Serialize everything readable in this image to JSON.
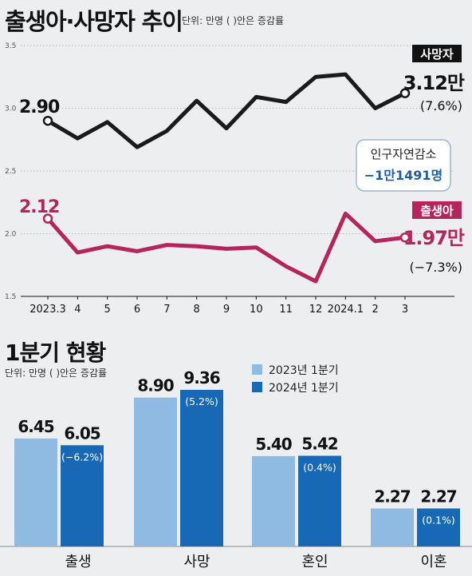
{
  "header": {
    "title": "출생아·사망자 추이",
    "unit": "단위: 만명 ( )안은 증감률"
  },
  "line_chart": {
    "deaths_tag": "사망자",
    "births_tag": "출생아",
    "deaths_start": "2.90",
    "births_start": "2.12",
    "deaths_end": "3.12만",
    "deaths_change": "(7.6%)",
    "births_end": "1.97만",
    "births_change": "(−7.3%)",
    "callout_line1": "인구자연감소",
    "callout_line2": "−1만1491명"
  },
  "section2": {
    "title": "1분기 현황",
    "unit": "단위: 만명 ( )안은  증감률"
  },
  "legend": {
    "y2023": "2023년 1분기",
    "y2024": "2024년 1분기"
  },
  "colors": {
    "deaths": "#1a1a1a",
    "births": "#b5245a",
    "bar2023": "#8fbbe3",
    "bar2024": "#1769b6",
    "callout_text": "#1f5fa8"
  },
  "chart_data": [
    {
      "type": "line",
      "title": "출생아·사망자 추이",
      "x": [
        "2023.3",
        "4",
        "5",
        "6",
        "7",
        "8",
        "9",
        "10",
        "11",
        "12",
        "2024.1",
        "2",
        "3"
      ],
      "yticks": [
        "1.5",
        "2.0",
        "2.5",
        "3.0",
        "3.5"
      ],
      "ylim": [
        1.5,
        3.5
      ],
      "grid": true,
      "series": [
        {
          "name": "사망자",
          "values": [
            2.9,
            2.76,
            2.89,
            2.69,
            2.82,
            3.06,
            2.84,
            3.09,
            3.05,
            3.25,
            3.27,
            3.0,
            3.12
          ]
        },
        {
          "name": "출생아",
          "values": [
            2.12,
            1.85,
            1.9,
            1.86,
            1.91,
            1.9,
            1.88,
            1.89,
            1.74,
            1.62,
            2.16,
            1.94,
            1.97
          ]
        }
      ]
    },
    {
      "type": "bar",
      "title": "1분기 현황",
      "categories": [
        "출생",
        "사망",
        "혼인",
        "이혼"
      ],
      "series": [
        {
          "name": "2023년 1분기",
          "values": [
            6.45,
            8.9,
            5.4,
            2.27
          ]
        },
        {
          "name": "2024년 1분기",
          "values": [
            6.05,
            9.36,
            5.42,
            2.27
          ]
        }
      ],
      "value_labels_2023": [
        "6.45",
        "8.90",
        "5.40",
        "2.27"
      ],
      "value_labels_2024": [
        "6.05",
        "9.36",
        "5.42",
        "2.27"
      ],
      "changes": [
        "(−6.2%)",
        "(5.2%)",
        "(0.4%)",
        "(0.1%)"
      ]
    }
  ]
}
